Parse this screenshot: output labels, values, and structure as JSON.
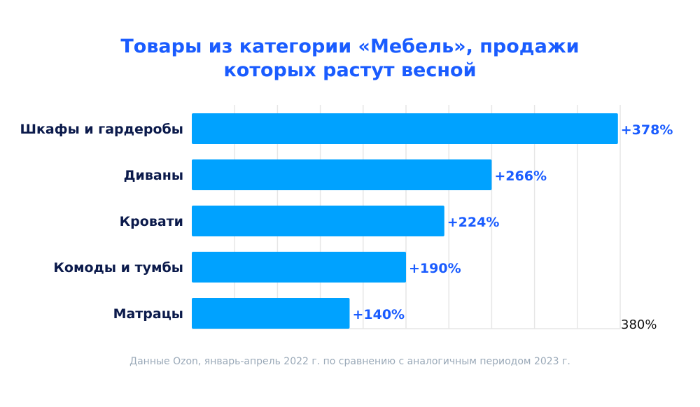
{
  "chart_data": {
    "type": "bar",
    "orientation": "horizontal",
    "title": "Товары из категории «Мебель», продажи которых растут весной",
    "categories": [
      "Шкафы и гардеробы",
      "Диваны",
      "Кровати",
      "Комоды и тумбы",
      "Матрацы"
    ],
    "values": [
      378,
      266,
      224,
      190,
      140
    ],
    "value_labels": [
      "+378%",
      "+266%",
      "+224%",
      "+190%",
      "+140%"
    ],
    "xlim": [
      0,
      380
    ],
    "x_tick_label": "380%",
    "grid": true,
    "bar_color": "#00a2ff",
    "label_color": "#1a5cff"
  },
  "title_line1": "Товары из категории «Мебель», продажи",
  "title_line2": "которых растут весной",
  "footnote": "Данные Ozon, январь-апрель 2022 г. по сравнению с аналогичным периодом 2023 г."
}
